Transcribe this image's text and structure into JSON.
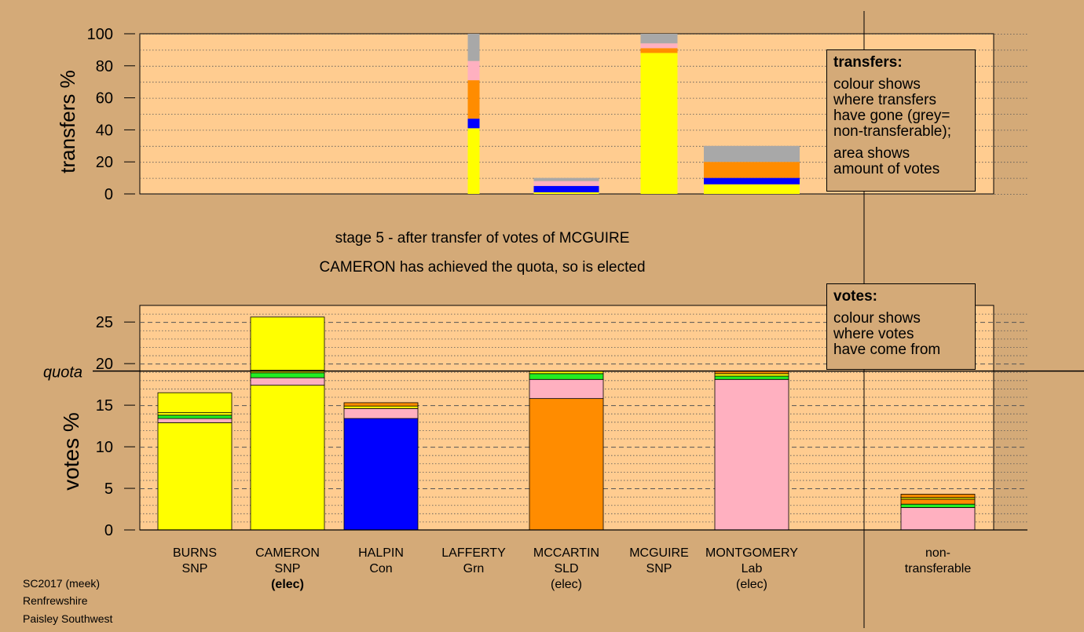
{
  "chart_data": [
    {
      "type": "bar",
      "stacked": true,
      "ylabel": "transfers %",
      "ylim": [
        0,
        100
      ],
      "yticks": [
        "0",
        "20",
        "40",
        "60",
        "80",
        "100"
      ],
      "grid": true,
      "categories": [
        "BURNS",
        "CAMERON",
        "HALPIN",
        "LAFFERTY",
        "MCCARTIN",
        "MCGUIRE",
        "MONTGOMERY",
        "non-transferable"
      ],
      "bars": [
        {
          "category": "LAFFERTY",
          "segments": [
            {
              "color": "#ffff00",
              "value": 41
            },
            {
              "color": "#0000ff",
              "value": 6
            },
            {
              "color": "#ff8c00",
              "value": 24
            },
            {
              "color": "#ffb0c0",
              "value": 12
            },
            {
              "color": "#a8a8a8",
              "value": 17
            }
          ]
        },
        {
          "category": "MCCARTIN",
          "segments": [
            {
              "color": "#ffff00",
              "value": 1
            },
            {
              "color": "#0000ff",
              "value": 4
            },
            {
              "color": "#ffb0c0",
              "value": 3
            },
            {
              "color": "#a8a8a8",
              "value": 2
            }
          ]
        },
        {
          "category": "MCGUIRE",
          "segments": [
            {
              "color": "#ffff00",
              "value": 88
            },
            {
              "color": "#ff8c00",
              "value": 3
            },
            {
              "color": "#ffb0c0",
              "value": 3
            },
            {
              "color": "#a8a8a8",
              "value": 6
            }
          ]
        },
        {
          "category": "MONTGOMERY",
          "segments": [
            {
              "color": "#ffff00",
              "value": 6
            },
            {
              "color": "#0000ff",
              "value": 4
            },
            {
              "color": "#ff8c00",
              "value": 10
            },
            {
              "color": "#a8a8a8",
              "value": 10
            }
          ]
        }
      ]
    },
    {
      "type": "bar",
      "stacked": true,
      "ylabel": "votes %",
      "ylim": [
        0,
        27
      ],
      "yticks": [
        "0",
        "5",
        "10",
        "15",
        "20",
        "25"
      ],
      "quota": 19.1,
      "quota_label": "quota",
      "grid": true,
      "categories": [
        "BURNS",
        "CAMERON",
        "HALPIN",
        "LAFFERTY",
        "MCCARTIN",
        "MCGUIRE",
        "MONTGOMERY",
        "non-transferable"
      ],
      "bars": [
        {
          "category": "BURNS",
          "segments": [
            {
              "color": "#ffff00",
              "value": 12.9
            },
            {
              "color": "#ffb0c0",
              "value": 0.5
            },
            {
              "color": "#22ee22",
              "value": 0.4
            },
            {
              "color": "#ffff00",
              "value": 0.3
            },
            {
              "color": "#ffff00",
              "value": 2.4
            }
          ]
        },
        {
          "category": "CAMERON",
          "segments": [
            {
              "color": "#ffff00",
              "value": 17.4
            },
            {
              "color": "#ffb0c0",
              "value": 0.9
            },
            {
              "color": "#22ee22",
              "value": 0.6
            },
            {
              "color": "#ffff00",
              "value": 0.3
            },
            {
              "color": "#ffff00",
              "value": 6.4
            }
          ]
        },
        {
          "category": "HALPIN",
          "segments": [
            {
              "color": "#0000ff",
              "value": 13.4
            },
            {
              "color": "#ffb0c0",
              "value": 1.2
            },
            {
              "color": "#ffff00",
              "value": 0.3
            },
            {
              "color": "#ff8c00",
              "value": 0.4
            }
          ]
        },
        {
          "category": "MCCARTIN",
          "segments": [
            {
              "color": "#ff8c00",
              "value": 15.8
            },
            {
              "color": "#ffb0c0",
              "value": 2.3
            },
            {
              "color": "#22ee22",
              "value": 0.7
            },
            {
              "color": "#ffff00",
              "value": 0.3
            }
          ]
        },
        {
          "category": "MONTGOMERY",
          "segments": [
            {
              "color": "#ffb0c0",
              "value": 18.1
            },
            {
              "color": "#22ee22",
              "value": 0.4
            },
            {
              "color": "#ffff00",
              "value": 0.3
            },
            {
              "color": "#ff8c00",
              "value": 0.3
            }
          ]
        },
        {
          "category": "non-transferable",
          "segments": [
            {
              "color": "#ffb0c0",
              "value": 2.7
            },
            {
              "color": "#22ee22",
              "value": 0.4
            },
            {
              "color": "#ff8c00",
              "value": 0.6
            },
            {
              "color": "#ffff00",
              "value": 0.2
            },
            {
              "color": "#ff8c00",
              "value": 0.4
            }
          ]
        }
      ]
    }
  ],
  "stage_text": "stage 5 - after transfer of votes of MCGUIRE",
  "elected_text": "CAMERON has achieved the quota, so is elected",
  "candidates": [
    {
      "name": "BURNS",
      "party": "SNP",
      "status": ""
    },
    {
      "name": "CAMERON",
      "party": "SNP",
      "status": "(elec)"
    },
    {
      "name": "HALPIN",
      "party": "Con",
      "status": ""
    },
    {
      "name": "LAFFERTY",
      "party": "Grn",
      "status": ""
    },
    {
      "name": "MCCARTIN",
      "party": "SLD",
      "status": "(elec)"
    },
    {
      "name": "MCGUIRE",
      "party": "SNP",
      "status": ""
    },
    {
      "name": "MONTGOMERY",
      "party": "Lab",
      "status": "(elec)"
    }
  ],
  "nontransferable_label": {
    "line1": "non-",
    "line2": "transferable"
  },
  "legend_transfers": {
    "title": "transfers:",
    "para1": [
      "colour shows",
      "where transfers",
      "have gone (grey=",
      "non-transferable);"
    ],
    "para2": [
      "area shows",
      "amount of votes"
    ]
  },
  "legend_votes": {
    "title": "votes:",
    "para1": [
      "colour shows",
      "where votes",
      "have come from"
    ]
  },
  "footer": {
    "line1": "SC2017 (meek)",
    "line2": "Renfrewshire",
    "line3": "Paisley Southwest"
  },
  "colors": {
    "background": "#d4aa78",
    "plot_area": "#ffcc90",
    "snp": "#ffff00",
    "con": "#0000ff",
    "sld": "#ff8c00",
    "lab": "#ffb0c0",
    "grn": "#22ee22",
    "nontransferable": "#a8a8a8"
  }
}
